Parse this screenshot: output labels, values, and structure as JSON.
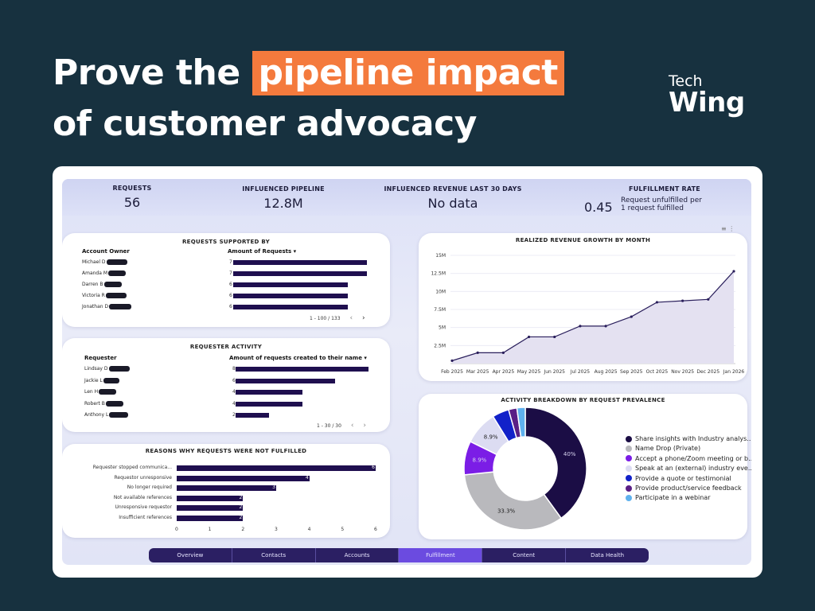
{
  "headline": {
    "pre": "Prove the ",
    "highlight": "pipeline impact",
    "line2": "of customer advocacy"
  },
  "logo": {
    "line1": "Tech",
    "line2": "Wing"
  },
  "kpis": [
    {
      "label": "REQUESTS",
      "value": "56"
    },
    {
      "label": "INFLUENCED PIPELINE",
      "value": "12.8M"
    },
    {
      "label": "INFLUENCED REVENUE LAST 30 DAYS",
      "value": "No data"
    },
    {
      "label": "FULFILLMENT RATE",
      "value": "0.45",
      "note": "Request unfulfilled per 1 request fulfilled"
    }
  ],
  "requests_supported": {
    "title": "REQUESTS SUPPORTED BY",
    "col1": "Account Owner",
    "col2": "Amount of Requests",
    "sort": "▾",
    "rows": [
      {
        "name": "Michael D",
        "value": 7
      },
      {
        "name": "Amanda M",
        "value": 7
      },
      {
        "name": "Darren B",
        "value": 6
      },
      {
        "name": "Victoria R",
        "value": 6
      },
      {
        "name": "Jonathan D",
        "value": 6
      }
    ],
    "max": 7,
    "pager": "1 - 100 / 133"
  },
  "requester_activity": {
    "title": "REQUESTER ACTIVITY",
    "col1": "Requester",
    "col2": "Amount of requests created to their name",
    "sort": "▾",
    "rows": [
      {
        "name": "Lindsay D",
        "value": 8
      },
      {
        "name": "Jackie L",
        "value": 6
      },
      {
        "name": "Len H",
        "value": 4
      },
      {
        "name": "Robert B",
        "value": 4
      },
      {
        "name": "Anthony L",
        "value": 2
      }
    ],
    "max": 8,
    "pager": "1 - 30 / 30"
  },
  "reasons": {
    "title": "REASONS WHY REQUESTS WERE NOT FULFILLED",
    "rows": [
      {
        "label": "Requester stopped communica...",
        "value": 6
      },
      {
        "label": "Requestor unresponsive",
        "value": 4
      },
      {
        "label": "No longer required",
        "value": 3
      },
      {
        "label": "Not available references",
        "value": 2
      },
      {
        "label": "Unresponsive requestor",
        "value": 2
      },
      {
        "label": "Insufficient references",
        "value": 2
      }
    ],
    "ticks": [
      "0",
      "1",
      "2",
      "3",
      "4",
      "5",
      "6"
    ],
    "max": 6
  },
  "revenue_chart": {
    "title": "REALIZED REVENUE GROWTH BY MONTH",
    "yticks": [
      "15M",
      "12.5M",
      "10M",
      "7.5M",
      "5M",
      "2.5M"
    ],
    "xticks": [
      "Feb 2025",
      "Mar 2025",
      "Apr 2025",
      "May 2025",
      "Jun 2025",
      "Jul 2025",
      "Aug 2025",
      "Sep 2025",
      "Oct 2025",
      "Nov 2025",
      "Dec 2025",
      "Jan 2026"
    ]
  },
  "activity": {
    "title": "ACTIVITY BREAKDOWN BY REQUEST PREVALENCE",
    "legend": [
      {
        "label": "Share insights with Industry analys...",
        "color": "#1b0d45"
      },
      {
        "label": "Name Drop (Private)",
        "color": "#b9b9bd"
      },
      {
        "label": "Accept a phone/Zoom meeting or b...",
        "color": "#7b1de6"
      },
      {
        "label": "Speak at an (external) industry eve...",
        "color": "#dcdcf2"
      },
      {
        "label": "Provide a quote or testimonial",
        "color": "#1221c9"
      },
      {
        "label": "Provide product/service feedback",
        "color": "#5a1f86"
      },
      {
        "label": "Participate in a webinar",
        "color": "#5fb1ee"
      }
    ]
  },
  "tabs": [
    "Overview",
    "Contacts",
    "Accounts",
    "Fulfillment",
    "Content",
    "Data Health"
  ],
  "active_tab": "Fulfillment",
  "chart_data": [
    {
      "type": "bar",
      "title": "REQUESTS SUPPORTED BY",
      "categories": [
        "Michael D",
        "Amanda M",
        "Darren B",
        "Victoria R",
        "Jonathan D"
      ],
      "values": [
        7,
        7,
        6,
        6,
        6
      ]
    },
    {
      "type": "bar",
      "title": "REQUESTER ACTIVITY",
      "categories": [
        "Lindsay D",
        "Jackie L",
        "Len H",
        "Robert B",
        "Anthony L"
      ],
      "values": [
        8,
        6,
        4,
        4,
        2
      ]
    },
    {
      "type": "bar",
      "title": "REASONS WHY REQUESTS WERE NOT FULFILLED",
      "categories": [
        "Requester stopped communica...",
        "Requestor unresponsive",
        "No longer required",
        "Not available references",
        "Unresponsive requestor",
        "Insufficient references"
      ],
      "values": [
        6,
        4,
        3,
        2,
        2,
        2
      ],
      "xlim": [
        0,
        6
      ]
    },
    {
      "type": "area",
      "title": "REALIZED REVENUE GROWTH BY MONTH",
      "x": [
        "Feb 2025",
        "Mar 2025",
        "Apr 2025",
        "May 2025",
        "Jun 2025",
        "Jul 2025",
        "Aug 2025",
        "Sep 2025",
        "Oct 2025",
        "Nov 2025",
        "Dec 2025",
        "Jan 2026"
      ],
      "values": [
        0.4,
        1.5,
        1.5,
        3.7,
        3.7,
        5.2,
        5.2,
        6.5,
        8.5,
        8.7,
        8.9,
        12.8
      ],
      "unit": "M",
      "ylim": [
        0,
        15
      ],
      "grid": true
    },
    {
      "type": "pie",
      "title": "ACTIVITY BREAKDOWN BY REQUEST PREVALENCE",
      "categories": [
        "Share insights with Industry analys...",
        "Name Drop (Private)",
        "Accept a phone/Zoom meeting or b...",
        "Speak at an (external) industry eve...",
        "Provide a quote or testimonial",
        "Provide product/service feedback",
        "Participate in a webinar"
      ],
      "values": [
        40,
        33.3,
        8.9,
        8.9,
        4.4,
        2.2,
        2.2
      ],
      "labels": [
        "40%",
        "33.3%",
        "8.9%",
        "8.9%",
        "",
        "",
        ""
      ]
    }
  ]
}
